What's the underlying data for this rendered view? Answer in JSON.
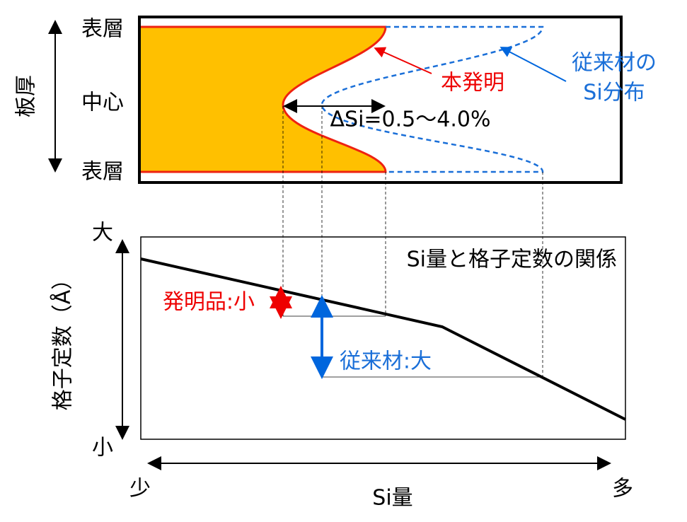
{
  "top_panel": {
    "surface_top": "表層",
    "center": "中心",
    "surface_bottom": "表層",
    "thickness_label": "板厚",
    "invention_label": "本発明",
    "conventional_label_line1": "従来材の",
    "conventional_label_line2": "Si分布",
    "delta_label": "ΔSi=0.5～4.0%"
  },
  "bottom_panel": {
    "title": "Si量と格子定数の関係",
    "invention_note": "発明品:小",
    "conventional_note": "従来材:大",
    "y_high": "大",
    "y_low": "小",
    "y_label": "格子定数（Å）",
    "x_low": "少",
    "x_high": "多",
    "x_label": "Si量"
  }
}
